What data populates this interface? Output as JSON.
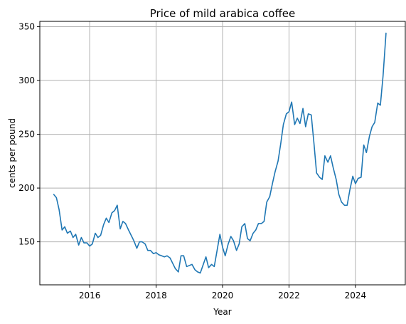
{
  "chart_data": {
    "type": "line",
    "title": "Price of mild arabica coffee",
    "xlabel": "Year",
    "ylabel": "cents per pound",
    "xlim": [
      2014.5,
      2025.5
    ],
    "ylim": [
      110,
      355
    ],
    "x_ticks": [
      2016,
      2018,
      2020,
      2022,
      2024
    ],
    "x_tick_labels": [
      "2016",
      "2018",
      "2020",
      "2022",
      "2024"
    ],
    "y_ticks": [
      150,
      200,
      250,
      300,
      350
    ],
    "y_tick_labels": [
      "150",
      "200",
      "250",
      "300",
      "350"
    ],
    "grid": true,
    "line_color": "#1f77b4",
    "series": [
      {
        "x": [
          2014.92,
          2015.0,
          2015.08,
          2015.17,
          2015.25,
          2015.33,
          2015.42,
          2015.5,
          2015.58,
          2015.67,
          2015.75,
          2015.83,
          2015.92,
          2016.0,
          2016.08,
          2016.17,
          2016.25,
          2016.33,
          2016.42,
          2016.5,
          2016.58,
          2016.67,
          2016.75,
          2016.83,
          2016.92,
          2017.0,
          2017.08,
          2017.17,
          2017.25,
          2017.33,
          2017.42,
          2017.5,
          2017.58,
          2017.67,
          2017.75,
          2017.83,
          2017.92,
          2018.0,
          2018.08,
          2018.17,
          2018.25,
          2018.33,
          2018.42,
          2018.5,
          2018.58,
          2018.67,
          2018.75,
          2018.83,
          2018.92,
          2019.0,
          2019.08,
          2019.17,
          2019.25,
          2019.33,
          2019.42,
          2019.5,
          2019.58,
          2019.67,
          2019.75,
          2019.83,
          2019.92,
          2020.0,
          2020.08,
          2020.17,
          2020.25,
          2020.33,
          2020.42,
          2020.5,
          2020.58,
          2020.67,
          2020.75,
          2020.83,
          2020.92,
          2021.0,
          2021.08,
          2021.17,
          2021.25,
          2021.33,
          2021.42,
          2021.5,
          2021.58,
          2021.67,
          2021.75,
          2021.83,
          2021.92,
          2022.0,
          2022.08,
          2022.17,
          2022.25,
          2022.33,
          2022.42,
          2022.5,
          2022.58,
          2022.67,
          2022.75,
          2022.83,
          2022.92,
          2023.0,
          2023.08,
          2023.17,
          2023.25,
          2023.33,
          2023.42,
          2023.5,
          2023.58,
          2023.67,
          2023.75,
          2023.83,
          2023.92,
          2024.0,
          2024.08,
          2024.17,
          2024.25,
          2024.33,
          2024.42,
          2024.5,
          2024.58,
          2024.67,
          2024.75,
          2024.83,
          2024.92
        ],
        "y": [
          194,
          191,
          180,
          161,
          164,
          158,
          160,
          154,
          157,
          147,
          154,
          149,
          149,
          146,
          148,
          158,
          154,
          156,
          166,
          172,
          168,
          177,
          179,
          184,
          162,
          169,
          167,
          161,
          156,
          151,
          144,
          150,
          150,
          148,
          142,
          142,
          139,
          140,
          138,
          137,
          136,
          137,
          135,
          130,
          125,
          122,
          137,
          137,
          127,
          128,
          129,
          124,
          122,
          121,
          129,
          136,
          126,
          129,
          127,
          141,
          157,
          145,
          137,
          148,
          155,
          151,
          142,
          148,
          164,
          167,
          153,
          151,
          158,
          161,
          167,
          167,
          169,
          187,
          192,
          204,
          215,
          225,
          241,
          259,
          269,
          271,
          280,
          259,
          265,
          260,
          274,
          257,
          269,
          268,
          242,
          214,
          210,
          208,
          230,
          224,
          230,
          219,
          208,
          194,
          187,
          184,
          184,
          198,
          211,
          204,
          209,
          210,
          240,
          233,
          248,
          257,
          261,
          279,
          277,
          304,
          344
        ]
      }
    ]
  }
}
